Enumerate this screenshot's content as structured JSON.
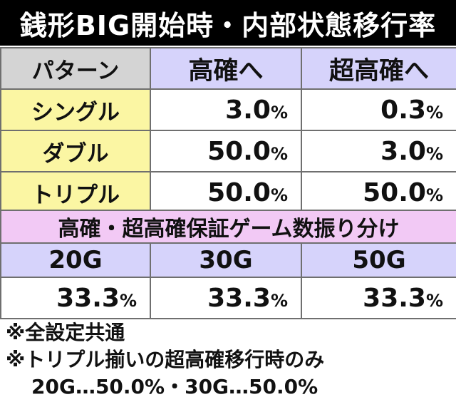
{
  "title": "銭形BIG開始時・内部状態移行率",
  "table1": {
    "header_label": "パターン",
    "columns": [
      "高確へ",
      "超高確へ"
    ],
    "rows": [
      {
        "label": "シングル",
        "values": [
          "3.0",
          "0.3"
        ]
      },
      {
        "label": "ダブル",
        "values": [
          "50.0",
          "3.0"
        ]
      },
      {
        "label": "トリプル",
        "values": [
          "50.0",
          "50.0"
        ]
      }
    ]
  },
  "percent_sign": "%",
  "table2": {
    "title": "高確・超高確保証ゲーム数振り分け",
    "columns": [
      "20G",
      "30G",
      "50G"
    ],
    "values": [
      "33.3",
      "33.3",
      "33.3"
    ]
  },
  "notes": [
    "※全設定共通",
    "※トリプル揃いの超高確移行時のみ",
    "20G…50.0%・30G…50.0%"
  ],
  "colors": {
    "title_bg": "#000000",
    "header_gray": "#d4d4d4",
    "header_lavender": "#d6d3fb",
    "row_yellow": "#fbf6a3",
    "section_pink": "#f2c9f5"
  }
}
